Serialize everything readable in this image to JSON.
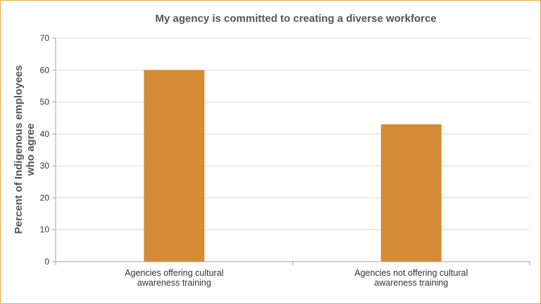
{
  "chart_data": {
    "type": "bar",
    "title": "My agency is committed to creating a diverse workforce",
    "ylabel_lines": [
      "Percent of Indigenous employees",
      "who agree"
    ],
    "xlabel": "",
    "ylim": [
      0,
      70
    ],
    "yticks": [
      0,
      10,
      20,
      30,
      40,
      50,
      60,
      70
    ],
    "grid": true,
    "categories": [
      [
        "Agencies offering cultural",
        "awareness training"
      ],
      [
        "Agencies not offering cultural",
        "awareness training"
      ]
    ],
    "values": [
      60,
      43
    ],
    "bar_color": "#d58b35",
    "border_color": "#e3a94a"
  }
}
